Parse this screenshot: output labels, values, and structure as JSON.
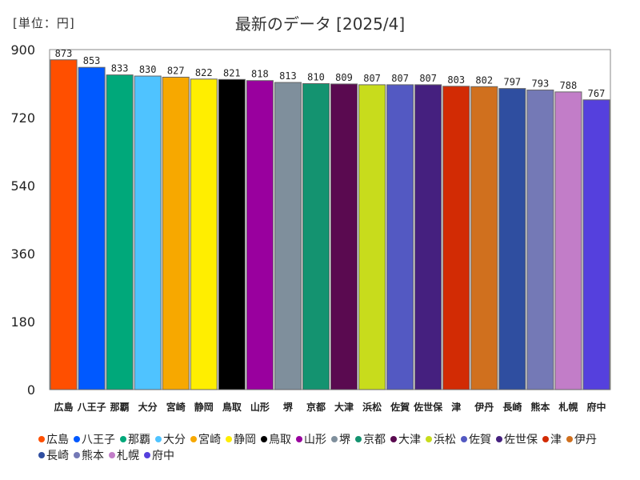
{
  "unit_label": "[単位：円]",
  "chart_data": {
    "type": "bar",
    "title": "最新のデータ [2025/4]",
    "xlabel": "",
    "ylabel": "",
    "ylim": [
      0,
      900
    ],
    "yticks": [
      0,
      180,
      360,
      540,
      720,
      900
    ],
    "grid": false,
    "legend_position": "bottom",
    "categories": [
      "広島",
      "八王子",
      "那覇",
      "大分",
      "宮崎",
      "静岡",
      "鳥取",
      "山形",
      "堺",
      "京都",
      "大津",
      "浜松",
      "佐賀",
      "佐世保",
      "津",
      "伊丹",
      "長崎",
      "熊本",
      "札幌",
      "府中"
    ],
    "values": [
      873,
      853,
      833,
      830,
      827,
      822,
      821,
      818,
      813,
      810,
      809,
      807,
      807,
      807,
      803,
      802,
      797,
      793,
      788,
      767
    ],
    "colors": [
      "#ff4f00",
      "#0059ff",
      "#00a87a",
      "#4fc3ff",
      "#f7a800",
      "#ffee00",
      "#000000",
      "#99009e",
      "#7f8f9c",
      "#149370",
      "#5a0a50",
      "#c8dc1c",
      "#5359c2",
      "#45207f",
      "#d22b04",
      "#d0701e",
      "#2f4ea0",
      "#7479b6",
      "#c27dc8",
      "#5540dd"
    ]
  }
}
